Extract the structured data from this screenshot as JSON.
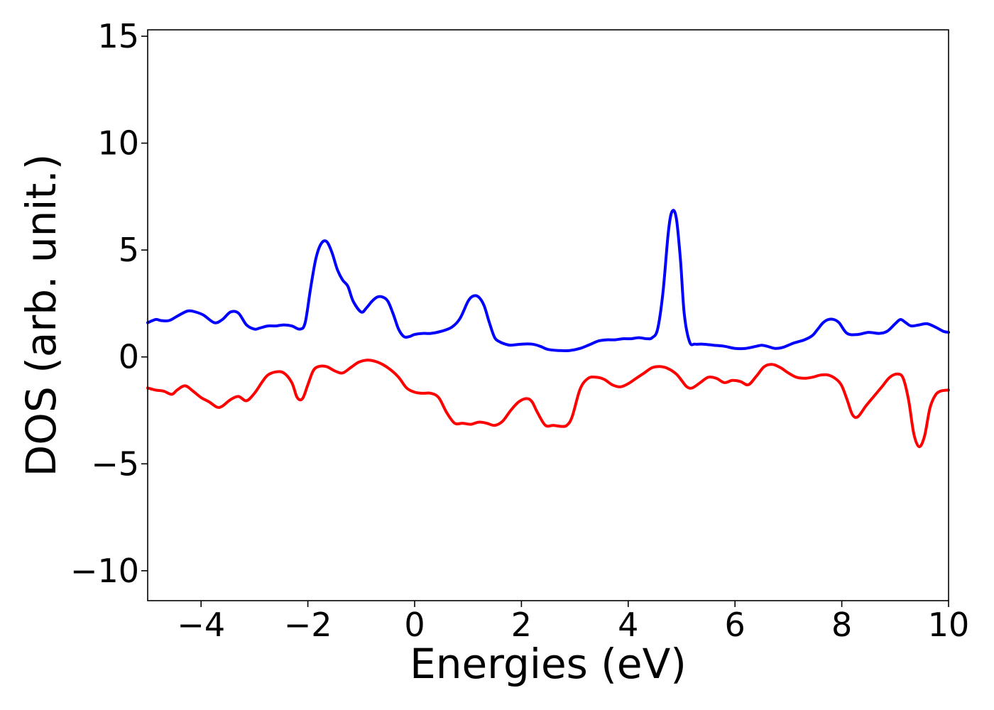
{
  "chart_data": {
    "type": "line",
    "title": "",
    "xlabel": "Energies (eV)",
    "ylabel": "DOS (arb. unit.)",
    "xlim": [
      -5,
      10
    ],
    "ylim": [
      -11.4,
      15.3
    ],
    "xticks": [
      -4,
      -2,
      0,
      2,
      4,
      6,
      8,
      10
    ],
    "xtick_labels": [
      "−4",
      "−2",
      "0",
      "2",
      "4",
      "6",
      "8",
      "10"
    ],
    "yticks": [
      -10,
      -5,
      0,
      5,
      10,
      15
    ],
    "ytick_labels": [
      "−10",
      "−5",
      "0",
      "5",
      "10",
      "15"
    ],
    "grid": false,
    "legend": "none",
    "series": [
      {
        "color": "#0000ff",
        "x": [
          -5.0,
          -4.85,
          -4.75,
          -4.6,
          -4.45,
          -4.25,
          -4.1,
          -3.95,
          -3.75,
          -3.6,
          -3.45,
          -3.3,
          -3.15,
          -3.0,
          -2.9,
          -2.75,
          -2.6,
          -2.45,
          -2.3,
          -2.15,
          -2.05,
          -1.95,
          -1.85,
          -1.75,
          -1.65,
          -1.55,
          -1.45,
          -1.35,
          -1.25,
          -1.15,
          -1.0,
          -0.9,
          -0.8,
          -0.7,
          -0.6,
          -0.5,
          -0.4,
          -0.3,
          -0.2,
          -0.1,
          0.0,
          0.15,
          0.3,
          0.5,
          0.7,
          0.85,
          1.0,
          1.1,
          1.2,
          1.3,
          1.4,
          1.5,
          1.6,
          1.7,
          1.8,
          2.0,
          2.2,
          2.35,
          2.5,
          2.7,
          2.9,
          3.1,
          3.3,
          3.45,
          3.6,
          3.75,
          3.9,
          4.05,
          4.2,
          4.35,
          4.45,
          4.55,
          4.65,
          4.75,
          4.82,
          4.9,
          4.98,
          5.05,
          5.15,
          5.25,
          5.4,
          5.6,
          5.8,
          6.0,
          6.2,
          6.4,
          6.5,
          6.6,
          6.75,
          6.9,
          7.1,
          7.3,
          7.45,
          7.55,
          7.65,
          7.75,
          7.85,
          7.95,
          8.1,
          8.3,
          8.5,
          8.7,
          8.85,
          9.0,
          9.1,
          9.2,
          9.3,
          9.45,
          9.6,
          9.75,
          9.9,
          10.0
        ],
        "y": [
          1.6,
          1.75,
          1.7,
          1.7,
          1.9,
          2.15,
          2.1,
          1.95,
          1.6,
          1.75,
          2.1,
          2.05,
          1.5,
          1.3,
          1.35,
          1.45,
          1.45,
          1.5,
          1.45,
          1.3,
          1.6,
          3.2,
          4.6,
          5.3,
          5.4,
          4.9,
          4.1,
          3.6,
          3.3,
          2.6,
          2.1,
          2.3,
          2.6,
          2.8,
          2.8,
          2.6,
          2.0,
          1.3,
          0.95,
          0.95,
          1.05,
          1.1,
          1.1,
          1.2,
          1.4,
          1.8,
          2.6,
          2.85,
          2.8,
          2.4,
          1.6,
          0.9,
          0.7,
          0.6,
          0.55,
          0.6,
          0.6,
          0.5,
          0.35,
          0.3,
          0.3,
          0.4,
          0.6,
          0.75,
          0.8,
          0.8,
          0.85,
          0.85,
          0.9,
          0.85,
          0.9,
          1.3,
          3.0,
          5.8,
          6.8,
          6.5,
          4.5,
          2.0,
          0.7,
          0.6,
          0.6,
          0.55,
          0.5,
          0.4,
          0.4,
          0.5,
          0.55,
          0.5,
          0.4,
          0.45,
          0.65,
          0.8,
          1.0,
          1.3,
          1.6,
          1.75,
          1.75,
          1.6,
          1.1,
          1.05,
          1.15,
          1.1,
          1.2,
          1.55,
          1.75,
          1.6,
          1.45,
          1.5,
          1.55,
          1.4,
          1.2,
          1.15
        ]
      },
      {
        "color": "#ff0000",
        "x": [
          -5.0,
          -4.85,
          -4.7,
          -4.55,
          -4.45,
          -4.3,
          -4.15,
          -4.0,
          -3.85,
          -3.7,
          -3.6,
          -3.45,
          -3.3,
          -3.15,
          -3.0,
          -2.85,
          -2.75,
          -2.6,
          -2.45,
          -2.3,
          -2.2,
          -2.1,
          -2.0,
          -1.9,
          -1.8,
          -1.65,
          -1.5,
          -1.35,
          -1.2,
          -1.05,
          -0.9,
          -0.75,
          -0.6,
          -0.45,
          -0.3,
          -0.15,
          0.0,
          0.15,
          0.3,
          0.45,
          0.6,
          0.75,
          0.9,
          1.05,
          1.2,
          1.35,
          1.5,
          1.65,
          1.8,
          1.95,
          2.1,
          2.2,
          2.3,
          2.45,
          2.6,
          2.75,
          2.85,
          2.95,
          3.1,
          3.25,
          3.4,
          3.55,
          3.7,
          3.85,
          4.0,
          4.15,
          4.3,
          4.45,
          4.6,
          4.75,
          4.9,
          5.0,
          5.1,
          5.2,
          5.35,
          5.5,
          5.65,
          5.8,
          5.95,
          6.1,
          6.25,
          6.4,
          6.55,
          6.7,
          6.85,
          7.0,
          7.15,
          7.3,
          7.45,
          7.6,
          7.75,
          7.9,
          8.0,
          8.1,
          8.2,
          8.3,
          8.45,
          8.6,
          8.75,
          8.9,
          9.05,
          9.15,
          9.25,
          9.35,
          9.45,
          9.55,
          9.65,
          9.75,
          9.85,
          10.0
        ],
        "y": [
          -1.45,
          -1.55,
          -1.6,
          -1.75,
          -1.55,
          -1.35,
          -1.6,
          -1.9,
          -2.1,
          -2.35,
          -2.3,
          -2.0,
          -1.85,
          -2.05,
          -1.7,
          -1.15,
          -0.85,
          -0.7,
          -0.75,
          -1.2,
          -1.9,
          -1.95,
          -1.3,
          -0.65,
          -0.45,
          -0.45,
          -0.65,
          -0.75,
          -0.5,
          -0.25,
          -0.15,
          -0.2,
          -0.35,
          -0.6,
          -0.95,
          -1.45,
          -1.65,
          -1.7,
          -1.7,
          -1.9,
          -2.6,
          -3.1,
          -3.1,
          -3.15,
          -3.05,
          -3.1,
          -3.2,
          -3.0,
          -2.5,
          -2.1,
          -1.95,
          -2.1,
          -2.6,
          -3.2,
          -3.2,
          -3.25,
          -3.2,
          -2.8,
          -1.5,
          -1.0,
          -0.95,
          -1.05,
          -1.3,
          -1.4,
          -1.25,
          -1.0,
          -0.75,
          -0.5,
          -0.45,
          -0.55,
          -0.8,
          -1.1,
          -1.4,
          -1.45,
          -1.2,
          -0.95,
          -1.0,
          -1.2,
          -1.1,
          -1.15,
          -1.3,
          -0.9,
          -0.45,
          -0.35,
          -0.5,
          -0.75,
          -0.95,
          -1.0,
          -0.95,
          -0.85,
          -0.85,
          -1.05,
          -1.35,
          -2.0,
          -2.7,
          -2.8,
          -2.3,
          -1.85,
          -1.4,
          -0.95,
          -0.8,
          -1.0,
          -2.0,
          -3.6,
          -4.2,
          -3.7,
          -2.4,
          -1.8,
          -1.6,
          -1.55
        ]
      }
    ]
  }
}
